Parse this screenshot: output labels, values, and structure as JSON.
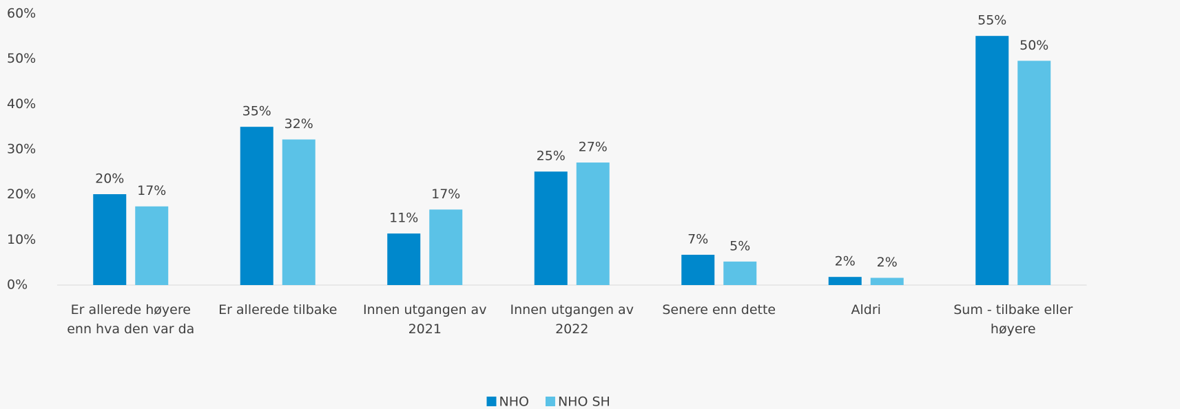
{
  "chart_data": {
    "type": "bar",
    "categories": [
      "Er allerede høyere enn hva den var da",
      "Er allerede tilbake",
      "Innen utgangen av 2021",
      "Innen utgangen av 2022",
      "Senere enn dette",
      "Aldri",
      "Sum - tilbake eller høyere"
    ],
    "series": [
      {
        "name": "NHO",
        "color": "#0088cc",
        "values": [
          20.1,
          35,
          11.4,
          25.1,
          6.7,
          1.8,
          55.1
        ],
        "value_labels": [
          "20%",
          "35%",
          "11%",
          "25%",
          "7%",
          "2%",
          "55%"
        ]
      },
      {
        "name": "NHO SH",
        "color": "#5bc2e7",
        "values": [
          17.4,
          32.2,
          16.7,
          27.1,
          5.2,
          1.6,
          49.6
        ],
        "value_labels": [
          "17%",
          "32%",
          "17%",
          "27%",
          "5%",
          "2%",
          "50%"
        ]
      }
    ],
    "ylim": [
      0,
      60
    ],
    "yticks": [
      {
        "value": 0,
        "label": "0%"
      },
      {
        "value": 10,
        "label": "10%"
      },
      {
        "value": 20,
        "label": "20%"
      },
      {
        "value": 30,
        "label": "30%"
      },
      {
        "value": 40,
        "label": "40%"
      },
      {
        "value": 50,
        "label": "50%"
      },
      {
        "value": 60,
        "label": "60%"
      }
    ],
    "legend": "bottom"
  }
}
